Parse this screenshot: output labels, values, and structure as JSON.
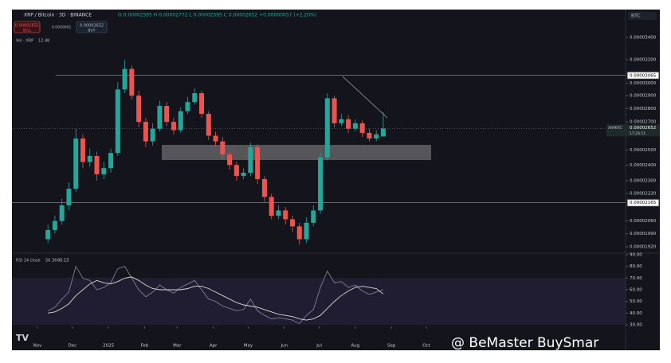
{
  "header": {
    "symbol": "XRP / Bitcoin · 3D · BINANCE",
    "ohlc": "O 0.00002595 H 0.00002772 L 0.00002595 C 0.00002652 +0.00000057 (+2.20%)",
    "sell_price": "0.00002651",
    "sell": "SELL",
    "spread": "0.0000001",
    "buy_price": "0.00002652",
    "buy": "BUY",
    "volume": "Vol · XRP",
    "volume_value": "12.4K",
    "currency": "BTC",
    "ticker": "XRPBTC",
    "countdown": "17:24:11"
  },
  "watermark": "@ BeMaster BuySmar",
  "chart_data": [
    {
      "type": "candlestick",
      "log_scale": true,
      "grid": false,
      "up_color": "#26a69a",
      "down_color": "#ef5350",
      "xlim": [
        -21.9,
        505.1
      ],
      "xticks": [
        {
          "value": 0,
          "label": "Nov"
        },
        {
          "value": 30,
          "label": "Dec"
        },
        {
          "value": 61,
          "label": "2025"
        },
        {
          "value": 92,
          "label": "Feb"
        },
        {
          "value": 120,
          "label": "Mar"
        },
        {
          "value": 151,
          "label": "Apr"
        },
        {
          "value": 181,
          "label": "May"
        },
        {
          "value": 212,
          "label": "Jun"
        },
        {
          "value": 242,
          "label": "Jul"
        },
        {
          "value": 273,
          "label": "Aug"
        },
        {
          "value": 304,
          "label": "Sep"
        },
        {
          "value": 334,
          "label": "Oct"
        }
      ],
      "ylim": [
        1.887e-05,
        3.528e-05
      ],
      "yticks": [
        {
          "value": 3.4e-05,
          "label": "0.00003400"
        },
        {
          "value": 3.2e-05,
          "label": "0.00003200"
        },
        {
          "value": 3e-05,
          "label": "0.00003000"
        },
        {
          "value": 2.9e-05,
          "label": "0.00002900"
        },
        {
          "value": 2.8e-05,
          "label": "0.00002800"
        },
        {
          "value": 2.7e-05,
          "label": "0.00002700"
        },
        {
          "value": 2.5e-05,
          "label": "0.00002500"
        },
        {
          "value": 2.4e-05,
          "label": "0.00002400"
        },
        {
          "value": 2.3e-05,
          "label": "0.00002300"
        },
        {
          "value": 2.22e-05,
          "label": "0.00002220"
        },
        {
          "value": 2.06e-05,
          "label": "0.00002060"
        },
        {
          "value": 1.99e-05,
          "label": "0.00001990"
        },
        {
          "value": 1.92e-05,
          "label": "0.00001920"
        }
      ],
      "levels": [
        3.065e-05,
        2.165e-05
      ],
      "x": [
        9,
        15,
        21,
        27,
        33,
        39,
        45,
        51,
        57,
        63,
        69,
        75,
        81,
        87,
        93,
        99,
        105,
        111,
        117,
        123,
        129,
        135,
        141,
        147,
        153,
        159,
        165,
        171,
        177,
        183,
        189,
        195,
        201,
        207,
        213,
        219,
        225,
        231,
        237,
        243,
        249,
        255,
        261,
        267,
        273,
        279,
        285,
        291,
        297
      ],
      "open": [
        1.96e-05,
        2.01e-05,
        2.06e-05,
        2.15e-05,
        2.25e-05,
        2.58e-05,
        2.42e-05,
        2.46e-05,
        2.34e-05,
        2.38e-05,
        2.48e-05,
        2.95e-05,
        3.12e-05,
        2.9e-05,
        2.7e-05,
        2.56e-05,
        2.65e-05,
        2.82e-05,
        2.7e-05,
        2.64e-05,
        2.78e-05,
        2.85e-05,
        2.92e-05,
        2.76e-05,
        2.6e-05,
        2.56e-05,
        2.47e-05,
        2.4e-05,
        2.33e-05,
        2.35e-05,
        2.52e-05,
        2.31e-05,
        2.2e-05,
        2.09e-05,
        2.12e-05,
        2.07e-05,
        2.03e-05,
        1.96e-05,
        2.05e-05,
        2.12e-05,
        2.45e-05,
        2.88e-05,
        2.69e-05,
        2.72e-05,
        2.65e-05,
        2.69e-05,
        2.62e-05,
        2.58e-05,
        2.595e-05
      ],
      "high": [
        2.04e-05,
        2.09e-05,
        2.19e-05,
        2.29e-05,
        2.65e-05,
        2.61e-05,
        2.51e-05,
        2.49e-05,
        2.42e-05,
        2.51e-05,
        3.01e-05,
        3.2e-05,
        3.15e-05,
        2.94e-05,
        2.73e-05,
        2.69e-05,
        2.86e-05,
        2.85e-05,
        2.73e-05,
        2.81e-05,
        2.89e-05,
        2.96e-05,
        2.94e-05,
        2.78e-05,
        2.63e-05,
        2.59e-05,
        2.49e-05,
        2.42e-05,
        2.38e-05,
        2.55e-05,
        2.54e-05,
        2.33e-05,
        2.22e-05,
        2.15e-05,
        2.14e-05,
        2.09e-05,
        2.05e-05,
        2.08e-05,
        2.15e-05,
        2.48e-05,
        2.92e-05,
        2.9e-05,
        2.76e-05,
        2.75e-05,
        2.72e-05,
        2.71e-05,
        2.65e-05,
        2.64e-05,
        2.772e-05
      ],
      "low": [
        1.94e-05,
        1.99e-05,
        2.04e-05,
        2.12e-05,
        2.23e-05,
        2.38e-05,
        2.39e-05,
        2.3e-05,
        2.31e-05,
        2.35e-05,
        2.46e-05,
        2.92e-05,
        2.87e-05,
        2.66e-05,
        2.52e-05,
        2.53e-05,
        2.63e-05,
        2.67e-05,
        2.61e-05,
        2.62e-05,
        2.76e-05,
        2.83e-05,
        2.73e-05,
        2.57e-05,
        2.53e-05,
        2.44e-05,
        2.37e-05,
        2.3e-05,
        2.31e-05,
        2.33e-05,
        2.28e-05,
        2.17e-05,
        2.07e-05,
        2.07e-05,
        2.04e-05,
        2e-05,
        1.93e-05,
        1.94e-05,
        2.03e-05,
        2.1e-05,
        2.43e-05,
        2.66e-05,
        2.67e-05,
        2.62e-05,
        2.63e-05,
        2.59e-05,
        2.56e-05,
        2.56e-05,
        2.595e-05
      ],
      "close": [
        2.01e-05,
        2.06e-05,
        2.15e-05,
        2.25e-05,
        2.58e-05,
        2.42e-05,
        2.46e-05,
        2.34e-05,
        2.38e-05,
        2.48e-05,
        2.95e-05,
        3.12e-05,
        2.9e-05,
        2.7e-05,
        2.56e-05,
        2.65e-05,
        2.82e-05,
        2.7e-05,
        2.64e-05,
        2.78e-05,
        2.85e-05,
        2.92e-05,
        2.76e-05,
        2.6e-05,
        2.56e-05,
        2.47e-05,
        2.4e-05,
        2.33e-05,
        2.35e-05,
        2.52e-05,
        2.31e-05,
        2.2e-05,
        2.09e-05,
        2.12e-05,
        2.07e-05,
        2.03e-05,
        1.96e-05,
        2.05e-05,
        2.12e-05,
        2.45e-05,
        2.88e-05,
        2.69e-05,
        2.72e-05,
        2.65e-05,
        2.69e-05,
        2.62e-05,
        2.58e-05,
        2.61e-05,
        2.652e-05
      ]
    },
    {
      "type": "line",
      "title": "RSI 14 close",
      "xlim": [
        -21.9,
        505.1
      ],
      "ylim": [
        28.6,
        91.4
      ],
      "yticks": [
        {
          "value": 90,
          "label": "90.00"
        },
        {
          "value": 80,
          "label": "80.00"
        },
        {
          "value": 70,
          "label": "70.00"
        },
        {
          "value": 60,
          "label": "60.00"
        },
        {
          "value": 50,
          "label": "50.00"
        },
        {
          "value": 40,
          "label": "40.00"
        },
        {
          "value": 30,
          "label": "30.00"
        }
      ],
      "x": [
        9,
        15,
        21,
        27,
        33,
        39,
        45,
        51,
        57,
        63,
        69,
        75,
        81,
        87,
        93,
        99,
        105,
        111,
        117,
        123,
        129,
        135,
        141,
        147,
        153,
        159,
        165,
        171,
        177,
        183,
        189,
        195,
        201,
        207,
        213,
        219,
        225,
        231,
        237,
        243,
        249,
        255,
        261,
        267,
        273,
        279,
        285,
        291,
        297
      ],
      "series": [
        {
          "color": "#7e7e94",
          "values": [
            42,
            45,
            52,
            58,
            80,
            70,
            68,
            60,
            62,
            66,
            78,
            80,
            70,
            60,
            54,
            58,
            64,
            60,
            57,
            62,
            65,
            68,
            60,
            52,
            50,
            46,
            44,
            42,
            43,
            52,
            42,
            38,
            35,
            36,
            35,
            34,
            31,
            38,
            43,
            62,
            76,
            66,
            67,
            62,
            64,
            59,
            56,
            58,
            60.13
          ]
        },
        {
          "color": "#d9d9c8",
          "values": [
            40,
            41,
            44,
            48,
            55,
            60,
            65,
            68,
            66,
            65,
            67,
            70,
            71,
            68,
            64,
            61,
            60,
            60,
            60,
            60,
            61,
            63,
            63,
            61,
            58,
            55,
            52,
            49,
            47,
            46,
            45,
            43,
            41,
            39,
            38,
            37,
            35,
            34,
            35,
            38,
            44,
            50,
            55,
            59,
            62,
            63,
            62,
            61,
            56.36
          ]
        }
      ]
    }
  ]
}
